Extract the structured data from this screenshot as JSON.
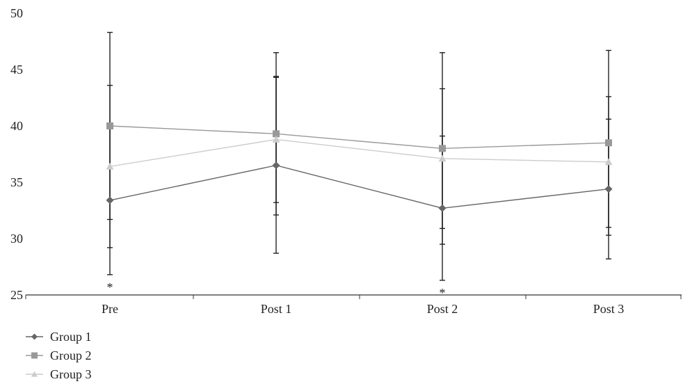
{
  "chart_data": {
    "type": "line",
    "categories": [
      "Pre",
      "Post 1",
      "Post 2",
      "Post 3"
    ],
    "ylim": [
      25,
      50
    ],
    "yticks": [
      25,
      30,
      35,
      40,
      45,
      50
    ],
    "grid": false,
    "legend_position": "bottom-left",
    "series": [
      {
        "name": "Group 1",
        "marker": "diamond",
        "color": "#666666",
        "values": [
          33.4,
          36.5,
          32.7,
          34.4
        ],
        "error": [
          6.6,
          7.8,
          6.4,
          6.2
        ]
      },
      {
        "name": "Group 2",
        "marker": "square",
        "color": "#999999",
        "values": [
          40.0,
          39.3,
          38.0,
          38.5
        ],
        "error": [
          8.3,
          7.2,
          8.5,
          8.2
        ]
      },
      {
        "name": "Group 3",
        "marker": "triangle",
        "color": "#cccccc",
        "values": [
          36.4,
          38.8,
          37.1,
          36.8
        ],
        "error": [
          7.2,
          5.6,
          6.2,
          5.8
        ]
      }
    ],
    "annotations": [
      {
        "category": "Pre",
        "text": "*"
      },
      {
        "category": "Post 2",
        "text": "*"
      }
    ]
  }
}
